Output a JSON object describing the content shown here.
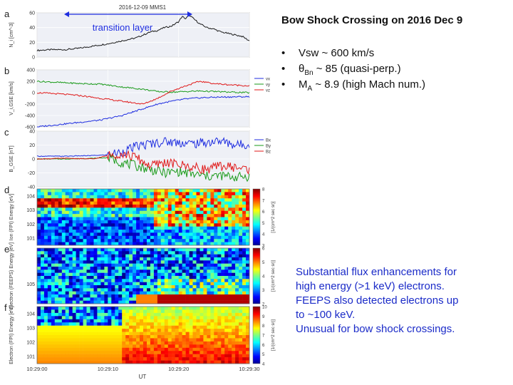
{
  "figure": {
    "title": "2016-12-09 MMS1",
    "annotation": "transition layer",
    "time_axis_label": "UT",
    "time_ticks": [
      "10:29:00",
      "10:29:10",
      "10:29:20",
      "10:29:30"
    ]
  },
  "slide": {
    "title": "Bow Shock Crossing on 2016 Dec 9",
    "bullets": [
      {
        "pre": "Vsw ~ 600 km/s",
        "sub": "",
        "post": ""
      },
      {
        "pre": "θ",
        "sub": "Bn",
        "post": " ~ 85  (quasi-perp.)"
      },
      {
        "pre": "M",
        "sub": "A",
        "post": "  ~ 8.9 (high Mach num.)"
      }
    ],
    "bullet_symbol": "•",
    "note_lines": [
      "Substantial flux enhancements for",
      "high energy (>1 keV) electrons.",
      "FEEPS also detected electrons up",
      "to ~100 keV.",
      "Unusual for bow shock crossings."
    ],
    "note_color": "#1b2bc8"
  },
  "chart_data": [
    {
      "type": "line",
      "panel": "a",
      "ylabel": "N_i [cm^-3]",
      "ylim": [
        0,
        60
      ],
      "yticks": [
        "0",
        "20",
        "40",
        "60"
      ],
      "x": [
        0,
        2,
        4,
        6,
        8,
        10,
        12,
        14,
        15,
        16,
        17,
        18,
        19,
        20,
        20.5,
        21,
        21.5,
        22,
        23,
        24,
        25,
        26,
        27,
        28,
        29,
        30
      ],
      "series": [
        {
          "name": "",
          "color": "#1a1a1a",
          "values": [
            9,
            10,
            10,
            12,
            15,
            18,
            22,
            26,
            30,
            34,
            36,
            40,
            42,
            48,
            55,
            52,
            57,
            53,
            45,
            40,
            38,
            34,
            32,
            30,
            28,
            22
          ]
        }
      ]
    },
    {
      "type": "line",
      "panel": "b",
      "ylabel": "V_i,GSE [km/s]",
      "ylim": [
        -600,
        400
      ],
      "yticks": [
        "-600",
        "-400",
        "-200",
        "0",
        "200",
        "400"
      ],
      "x": [
        0,
        3,
        6,
        9,
        12,
        15,
        17,
        19,
        21,
        23,
        25,
        27,
        30
      ],
      "series": [
        {
          "name": "vx",
          "color": "#1f2ee0",
          "values": [
            -600,
            -560,
            -520,
            -480,
            -400,
            -280,
            -200,
            -150,
            -110,
            -90,
            -80,
            -75,
            -70
          ]
        },
        {
          "name": "vy",
          "color": "#1a9a1a",
          "values": [
            200,
            180,
            160,
            150,
            100,
            60,
            20,
            10,
            20,
            30,
            20,
            10,
            0
          ]
        },
        {
          "name": "vz",
          "color": "#e01818",
          "values": [
            0,
            -20,
            -50,
            -100,
            -150,
            -200,
            -100,
            30,
            120,
            200,
            160,
            140,
            120
          ]
        }
      ]
    },
    {
      "type": "line",
      "panel": "c",
      "ylabel": "B_GSE [nT]",
      "ylim": [
        -40,
        40
      ],
      "yticks": [
        "-40",
        "-20",
        "0",
        "20",
        "40"
      ],
      "x": [
        0,
        4,
        8,
        10,
        12,
        14,
        16,
        18,
        20,
        22,
        24,
        26,
        28,
        30
      ],
      "series": [
        {
          "name": "Bx",
          "color": "#1f2ee0",
          "values": [
            4,
            4,
            5,
            6,
            10,
            18,
            22,
            25,
            24,
            22,
            24,
            26,
            20,
            22
          ]
        },
        {
          "name": "By",
          "color": "#1a9a1a",
          "values": [
            0,
            0,
            1,
            2,
            -5,
            -10,
            -15,
            -20,
            -18,
            -22,
            -25,
            -24,
            -26,
            -25
          ]
        },
        {
          "name": "Bz",
          "color": "#e01818",
          "values": [
            0,
            1,
            0,
            5,
            8,
            2,
            -10,
            -5,
            -8,
            -12,
            -15,
            -10,
            -12,
            -15
          ]
        }
      ]
    },
    {
      "type": "heatmap",
      "panel": "d",
      "ylabel": "Ion (FPI) Energy [eV]",
      "yticks": [
        "10^1",
        "10^2",
        "10^3",
        "10^4"
      ],
      "colorbar": {
        "label": "[1/(cm^2 sec sr)]",
        "ticks": [
          "3",
          "4",
          "5",
          "6",
          "7",
          "8"
        ]
      }
    },
    {
      "type": "heatmap",
      "panel": "e",
      "ylabel": "Electron (FEEPS) Energy [eV]",
      "yticks": [
        "10^5"
      ],
      "colorbar": {
        "label": "[1/(cm^2 sec sr)]",
        "ticks": [
          "2",
          "3",
          "4",
          "5",
          "6"
        ]
      }
    },
    {
      "type": "heatmap",
      "panel": "f",
      "ylabel": "Electron (FPI) Energy [eV]",
      "yticks": [
        "10^1",
        "10^2",
        "10^3",
        "10^4"
      ],
      "colorbar": {
        "label": "[1/(cm^2 sec sr)]",
        "ticks": [
          "4",
          "5",
          "6",
          "7",
          "8",
          "9",
          "10"
        ]
      }
    }
  ]
}
